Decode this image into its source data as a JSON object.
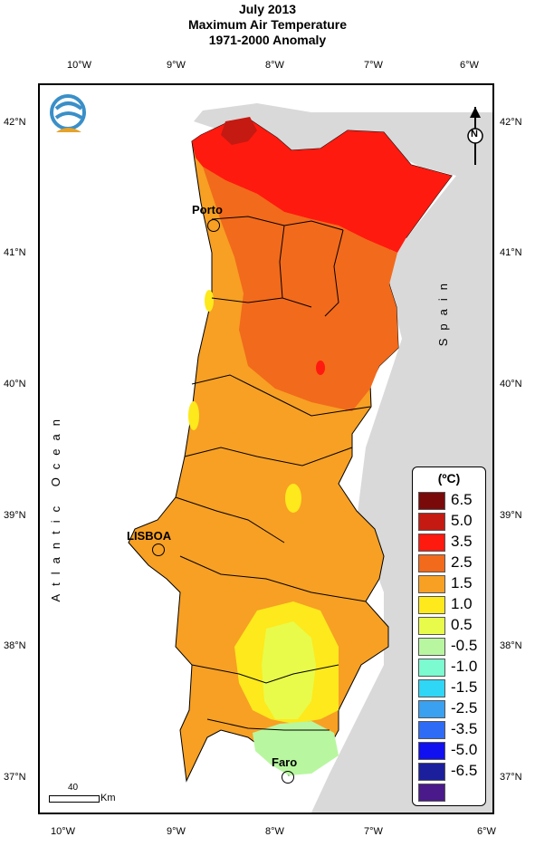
{
  "title": {
    "line1": "July 2013",
    "line2": "Maximum Air Temperature",
    "line3": "1971-2000 Anomaly"
  },
  "axes": {
    "lon_labels": [
      "10°W",
      "9°W",
      "8°W",
      "7°W",
      "6°W"
    ],
    "lat_labels": [
      "42°N",
      "41°N",
      "40°N",
      "39°N",
      "38°N",
      "37°N"
    ]
  },
  "places": {
    "porto": "Porto",
    "lisboa": "LISBOA",
    "faro": "Faro",
    "ocean": "Atlantic Ocean",
    "spain": "Spain"
  },
  "scale_bar": {
    "value": "40",
    "unit": "Km"
  },
  "north_arrow": {
    "label": "N"
  },
  "legend": {
    "title": "(ºC)",
    "items": [
      {
        "label": "6.5",
        "color": "#7a0a0a"
      },
      {
        "label": "5.0",
        "color": "#c41a12"
      },
      {
        "label": "3.5",
        "color": "#ff1a0f"
      },
      {
        "label": "2.5",
        "color": "#f26a1b"
      },
      {
        "label": "1.5",
        "color": "#f7a024"
      },
      {
        "label": "1.0",
        "color": "#fde91c"
      },
      {
        "label": "0.5",
        "color": "#e8fb4a"
      },
      {
        "label": "-0.5",
        "color": "#b8f7a0"
      },
      {
        "label": "-1.0",
        "color": "#7cfbd0"
      },
      {
        "label": "-1.5",
        "color": "#2fd6f5"
      },
      {
        "label": "-2.5",
        "color": "#3aa0f0"
      },
      {
        "label": "-3.5",
        "color": "#2f6cf5"
      },
      {
        "label": "-5.0",
        "color": "#1010f0"
      },
      {
        "label": "-6.5",
        "color": "#1c1f9c"
      },
      {
        "label": "",
        "color": "#4a1a8a"
      }
    ]
  },
  "colors": {
    "land_spain": "#d9d9d9",
    "sea": "#ffffff",
    "border": "#000000"
  }
}
